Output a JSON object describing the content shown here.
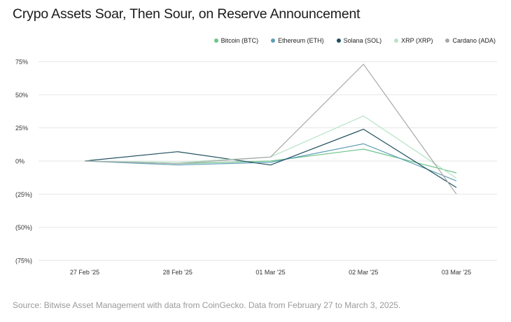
{
  "title": "Crypo Assets Soar, Then Sour, on Reserve Announcement",
  "source": "Source: Bitwise Asset Management with data from CoinGecko. Data from February 27 to March 3, 2025.",
  "colors": {
    "grid": "#e6e6e6",
    "axis_text": "#333333"
  },
  "chart_data": {
    "type": "line",
    "title": "Crypo Assets Soar, Then Sour, on Reserve Announcement",
    "xlabel": "",
    "ylabel": "",
    "categories": [
      "27 Feb '25",
      "28 Feb '25",
      "01 Mar '25",
      "02 Mar '25",
      "03 Mar '25"
    ],
    "ylim": [
      -75,
      75
    ],
    "yticks": [
      75,
      50,
      25,
      0,
      -25,
      -50,
      -75
    ],
    "ytick_labels": [
      "75%",
      "50%",
      "25%",
      "0%",
      "(25%)",
      "(50%)",
      "(75%)"
    ],
    "grid": true,
    "legend_position": "top-right",
    "series": [
      {
        "name": "Bitcoin (BTC)",
        "color": "#6cc48a",
        "values": [
          0,
          -2,
          0,
          9,
          -9
        ]
      },
      {
        "name": "Ethereum (ETH)",
        "color": "#5f9fb5",
        "values": [
          0,
          -3,
          -1,
          13,
          -15
        ]
      },
      {
        "name": "Solana (SOL)",
        "color": "#1f4f5f",
        "values": [
          0,
          7,
          -3,
          24,
          -20
        ]
      },
      {
        "name": "XRP (XRP)",
        "color": "#b5e3c5",
        "values": [
          0,
          -1,
          3,
          34,
          -13
        ]
      },
      {
        "name": "Cardano (ADA)",
        "color": "#a8a8a8",
        "values": [
          0,
          -2,
          3,
          73,
          -25
        ]
      }
    ]
  }
}
